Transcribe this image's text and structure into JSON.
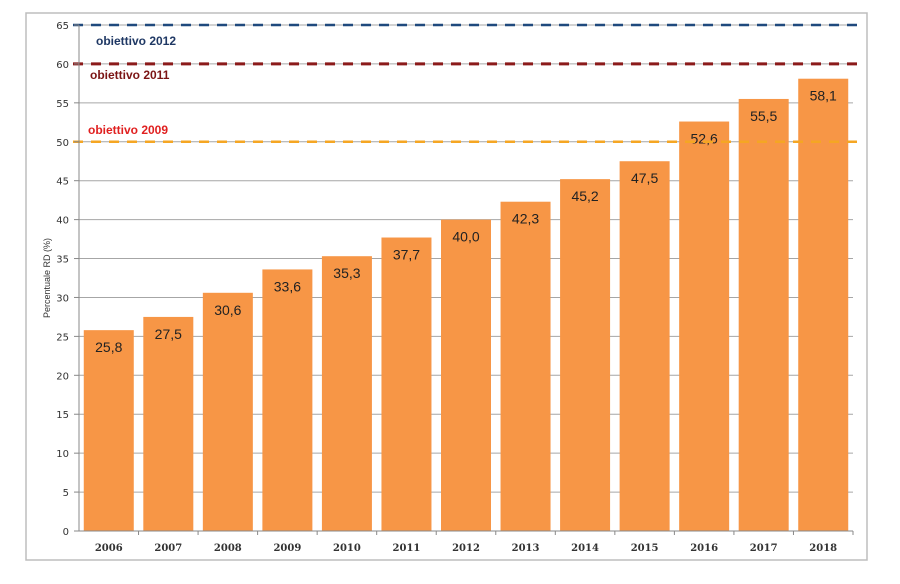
{
  "chart_data": {
    "type": "bar",
    "title": "",
    "xlabel": "",
    "ylabel": "Percentuale RD (%)",
    "ylim": [
      0,
      65
    ],
    "yticks": [
      0,
      5,
      10,
      15,
      20,
      25,
      30,
      35,
      40,
      45,
      50,
      55,
      60,
      65
    ],
    "grid": true,
    "categories": [
      "2006",
      "2007",
      "2008",
      "2009",
      "2010",
      "2011",
      "2012",
      "2013",
      "2014",
      "2015",
      "2016",
      "2017",
      "2018"
    ],
    "values": [
      25.8,
      27.5,
      30.6,
      33.6,
      35.3,
      37.7,
      40.0,
      42.3,
      45.2,
      47.5,
      52.6,
      55.5,
      58.1
    ],
    "data_labels": [
      "25,8",
      "27,5",
      "30,6",
      "33,6",
      "35,3",
      "37,7",
      "40,0",
      "42,3",
      "45,2",
      "47,5",
      "52,6",
      "55,5",
      "58,1"
    ],
    "bar_color": "#F79646",
    "reference_lines": [
      {
        "label": "obiettivo 2012",
        "value": 65,
        "color": "#1F497D",
        "label_color": "#1F3864"
      },
      {
        "label": "obiettivo 2011",
        "value": 60,
        "color": "#8B1A1A",
        "label_color": "#7B1414"
      },
      {
        "label": "obiettivo 2009",
        "value": 50,
        "color": "#F5A623",
        "label_color": "#E02020"
      }
    ]
  }
}
